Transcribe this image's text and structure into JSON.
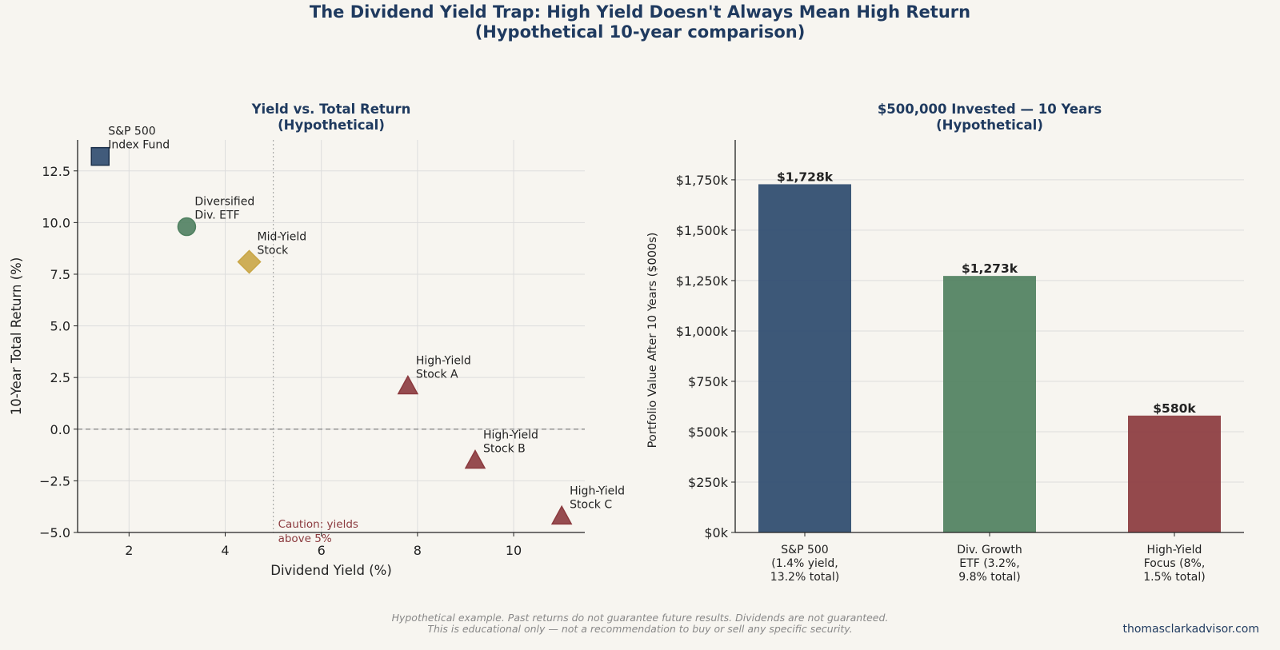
{
  "figure": {
    "title": "The Dividend Yield Trap: High Yield Doesn't Always Mean High Return\n(Hypothetical 10-year comparison)",
    "footnote": "Hypothetical example. Past returns do not guarantee future results. Dividends are not guaranteed.\nThis is educational only — not a recommendation to buy or sell any specific security.",
    "source": "thomasclarkadvisor.com"
  },
  "chart_data": [
    {
      "type": "scatter",
      "title": "Yield vs. Total Return\n(Hypothetical)",
      "xlabel": "Dividend Yield (%)",
      "ylabel": "10-Year Total Return (%)",
      "xlim": [
        0.93,
        11.48
      ],
      "ylim": [
        -5,
        14
      ],
      "xticks": [
        2,
        4,
        6,
        8,
        10
      ],
      "yticks": [
        {
          "value": 12.5,
          "label": "12.5"
        },
        {
          "value": 10,
          "label": "10.0"
        },
        {
          "value": 7.5,
          "label": "7.5"
        },
        {
          "value": 5,
          "label": "5.0"
        },
        {
          "value": 2.5,
          "label": "2.5"
        },
        {
          "value": 0,
          "label": "0.0"
        },
        {
          "value": -2.5,
          "label": "−2.5"
        },
        {
          "value": -5,
          "label": "−5.0"
        }
      ],
      "grid": true,
      "zero_line": 0,
      "threshold": 5,
      "threshold_note": "Caution: yields\nabove 5%",
      "points": [
        {
          "label": "S&P 500\nIndex Fund",
          "x": 1.4,
          "y": 13.2,
          "marker": "square",
          "color": "#2c4a6e"
        },
        {
          "label": "Diversified\nDiv. ETF",
          "x": 3.2,
          "y": 9.8,
          "marker": "circle",
          "color": "#4f8060"
        },
        {
          "label": "Mid-Yield\nStock",
          "x": 4.5,
          "y": 8.1,
          "marker": "diamond",
          "color": "#c9a646"
        },
        {
          "label": "High-Yield\nStock A",
          "x": 7.8,
          "y": 2.1,
          "marker": "triangle",
          "color": "#8b3a3e"
        },
        {
          "label": "High-Yield\nStock B",
          "x": 9.2,
          "y": -1.5,
          "marker": "triangle",
          "color": "#8b3a3e"
        },
        {
          "label": "High-Yield\nStock C",
          "x": 11,
          "y": -4.2,
          "marker": "triangle",
          "color": "#8b3a3e"
        }
      ]
    },
    {
      "type": "bar",
      "title": "$500,000 Invested — 10 Years\n(Hypothetical)",
      "ylabel": "Portfolio Value After 10 Years ($000s)",
      "categories": [
        "S&P 500\n(1.4% yield,\n13.2% total)",
        "Div. Growth\nETF (3.2%,\n9.8% total)",
        "High-Yield\nFocus (8%,\n1.5% total)"
      ],
      "values": [
        1728,
        1273,
        580
      ],
      "value_labels": [
        "$1,728k",
        "$1,273k",
        "$580k"
      ],
      "colors": [
        "#2c4a6e",
        "#4f8060",
        "#8b3a3e"
      ],
      "ylim": [
        0,
        1948
      ],
      "yticks": [
        {
          "value": 0,
          "label": "$0k"
        },
        {
          "value": 250,
          "label": "$250k"
        },
        {
          "value": 500,
          "label": "$500k"
        },
        {
          "value": 750,
          "label": "$750k"
        },
        {
          "value": 1000,
          "label": "$1,000k"
        },
        {
          "value": 1250,
          "label": "$1,250k"
        },
        {
          "value": 1500,
          "label": "$1,500k"
        },
        {
          "value": 1750,
          "label": "$1,750k"
        }
      ],
      "grid": true
    }
  ]
}
